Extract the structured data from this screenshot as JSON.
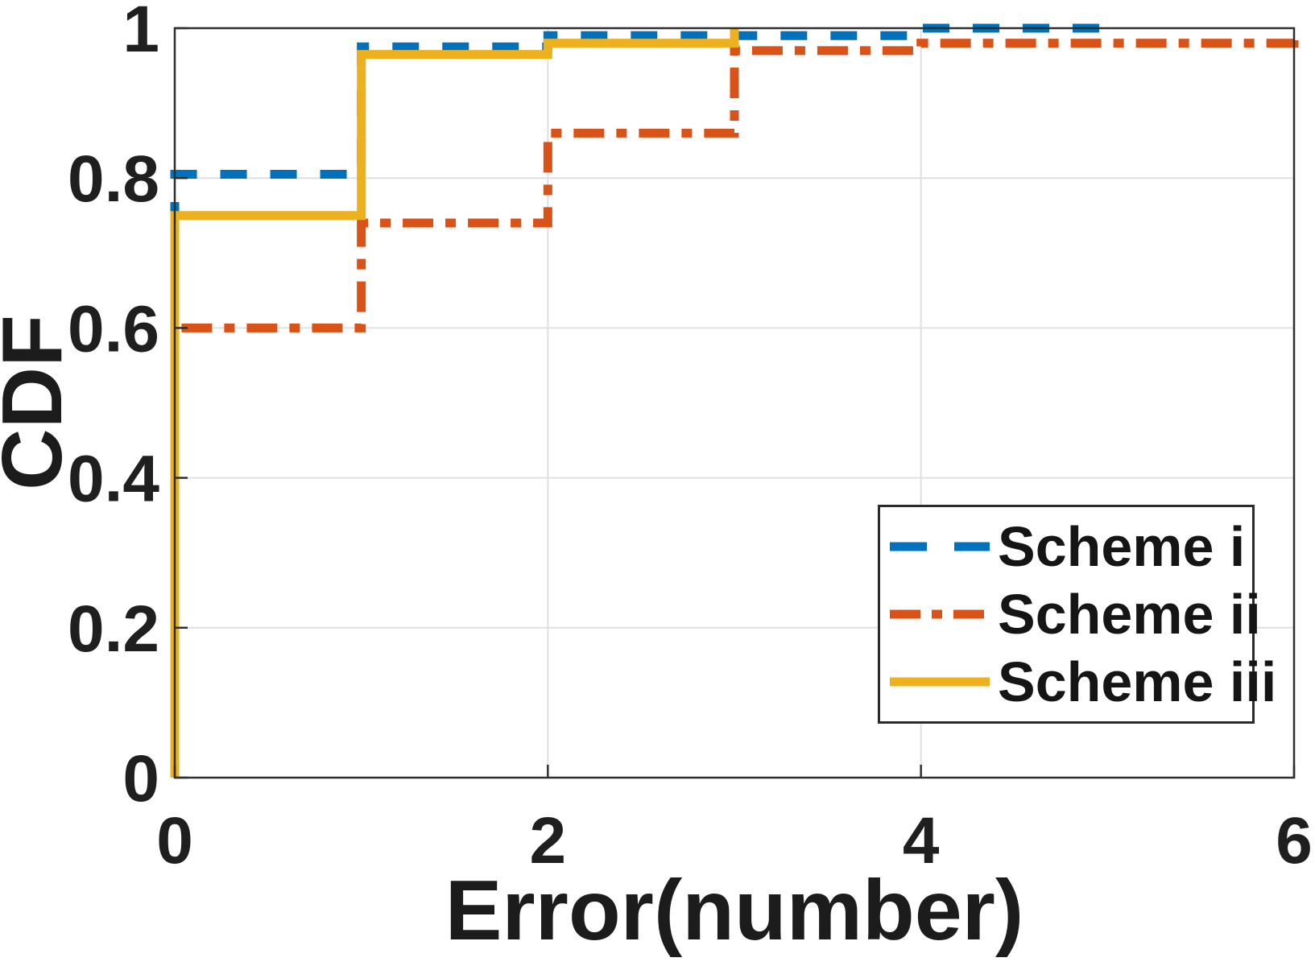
{
  "chart_data": {
    "type": "line",
    "variant": "ecdf-step",
    "title": "",
    "xlabel": "Error(number)",
    "ylabel": "CDF",
    "xlim": [
      0,
      6
    ],
    "ylim": [
      0,
      1
    ],
    "xticks": {
      "values": [
        0,
        2,
        4,
        6
      ],
      "labels": [
        "0",
        "2",
        "4",
        "6"
      ]
    },
    "yticks": {
      "values": [
        0,
        0.2,
        0.4,
        0.6,
        0.8,
        1
      ],
      "labels": [
        "0",
        "0.2",
        "0.4",
        "0.6",
        "0.8",
        "1"
      ]
    },
    "grid": "on",
    "legend": {
      "position": "lower-right-inside",
      "border": true
    },
    "series": [
      {
        "name": "Scheme i",
        "color": "#0072BD",
        "line_style": "dashed",
        "step_x": [
          0,
          1,
          2,
          4
        ],
        "step_y": [
          0.805,
          0.975,
          0.99,
          1.0
        ],
        "x_end": 5
      },
      {
        "name": "Scheme ii",
        "color": "#D95319",
        "line_style": "dash-dot",
        "step_x": [
          0,
          1,
          2,
          3,
          4,
          6
        ],
        "step_y": [
          0.6,
          0.74,
          0.86,
          0.97,
          0.98,
          1.0
        ],
        "x_end": 6
      },
      {
        "name": "Scheme iii",
        "color": "#EDB120",
        "line_style": "solid",
        "step_x": [
          0,
          1,
          2,
          3
        ],
        "step_y": [
          0.75,
          0.965,
          0.98,
          1.0
        ],
        "x_end": 3
      }
    ]
  },
  "styles": {
    "background": "#ffffff",
    "axis_box_color": "#2e2e2e",
    "grid_color": "#e0e0e0",
    "text_color": "#1f1f1f"
  }
}
